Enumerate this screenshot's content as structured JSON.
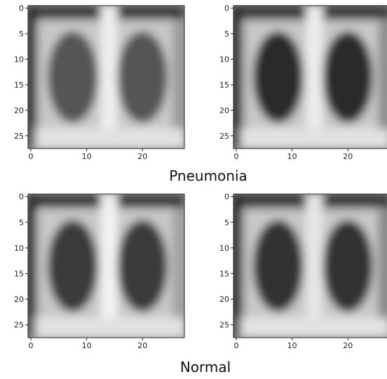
{
  "chart_data": [
    {
      "type": "image",
      "xlim": [
        -0.5,
        27.5
      ],
      "ylim": [
        27.5,
        -0.5
      ],
      "xticks": [
        0,
        10,
        20
      ],
      "yticks": [
        0,
        5,
        10,
        15,
        20,
        25
      ]
    },
    {
      "type": "image",
      "xlim": [
        -0.5,
        27.5
      ],
      "ylim": [
        27.5,
        -0.5
      ],
      "xticks": [
        0,
        10,
        20
      ],
      "yticks": [
        0,
        5,
        10,
        15,
        20,
        25
      ]
    },
    {
      "type": "image",
      "xlim": [
        -0.5,
        27.5
      ],
      "ylim": [
        27.5,
        -0.5
      ],
      "xticks": [
        0,
        10,
        20
      ],
      "yticks": [
        0,
        5,
        10,
        15,
        20,
        25
      ]
    },
    {
      "type": "image",
      "xlim": [
        -0.5,
        27.5
      ],
      "ylim": [
        27.5,
        -0.5
      ],
      "xticks": [
        0,
        10,
        20
      ],
      "yticks": [
        0,
        5,
        10,
        15,
        20,
        25
      ]
    }
  ],
  "captions": [
    "Pneumonia",
    "Normal"
  ]
}
